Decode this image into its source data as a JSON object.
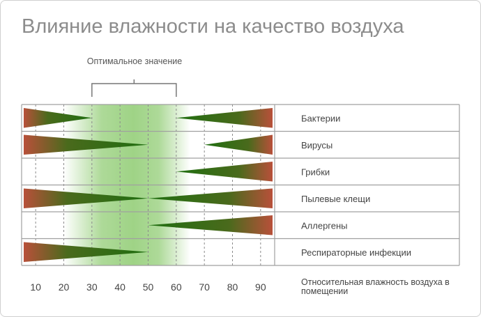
{
  "title": "Влияние влажности на качество воздуха",
  "chart_data": {
    "type": "range-bar",
    "title": "Влияние влажности на качество воздуха",
    "xlabel": "Относительная влажность воздуха в помещении",
    "xlim": [
      5,
      95
    ],
    "x_ticks": [
      "10",
      "20",
      "30",
      "40",
      "50",
      "60",
      "70",
      "80",
      "90"
    ],
    "x_tick_values": [
      10,
      20,
      30,
      40,
      50,
      60,
      70,
      80,
      90
    ],
    "optimal_range": {
      "label": "Оптимальное значение",
      "from": 30,
      "to": 60
    },
    "categories": [
      "Бактерии",
      "Вирусы",
      "Грибки",
      "Пылевые клещи",
      "Аллергены",
      "Респираторные инфекции"
    ],
    "rows": [
      {
        "label": "Бактерии",
        "low_until": 30,
        "high_from": 60
      },
      {
        "label": "Вирусы",
        "low_until": 50,
        "high_from": 70
      },
      {
        "label": "Грибки",
        "low_until": null,
        "high_from": 60
      },
      {
        "label": "Пылевые клещи",
        "low_until": 50,
        "high_from": 50
      },
      {
        "label": "Аллергены",
        "low_until": null,
        "high_from": 50
      },
      {
        "label": "Респираторные инфекции",
        "low_until": 50,
        "high_from": null
      }
    ],
    "colors": {
      "wedge_base": "#b8503a",
      "wedge_tip": "#1f6e10",
      "optimal": "#9fd386",
      "row_line": "#a0a0a0"
    }
  }
}
